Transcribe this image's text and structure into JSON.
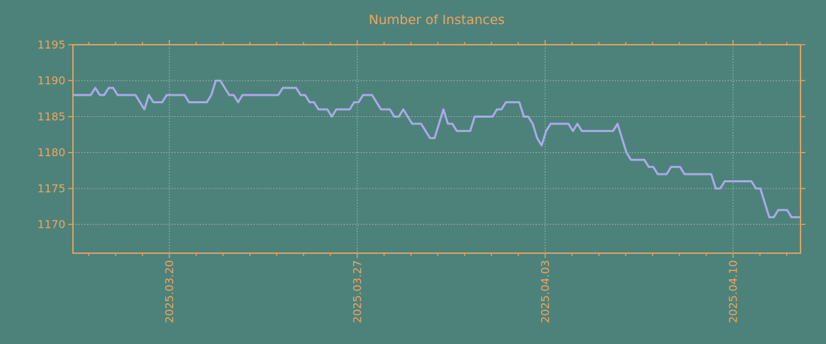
{
  "figure": {
    "colors": {
      "background": "#4d827b",
      "accent": "#f0a55c",
      "line": "#aaaae8",
      "grid": "#bfc5c1"
    }
  },
  "chart_data": {
    "type": "line",
    "title": "Number of Instances",
    "xlabel": "",
    "ylabel": "",
    "legend": "none",
    "grid": "dotted-both-axes",
    "ylim": [
      1166,
      1195
    ],
    "y_ticks": [
      1170,
      1175,
      1180,
      1185,
      1190,
      1195
    ],
    "y_gridlines": [
      1170,
      1175,
      1180,
      1185,
      1190
    ],
    "x_tick_labels": [
      "2025.03.20",
      "2025.03.27",
      "2025.04.03",
      "2025.04.10"
    ],
    "x_tick_positions_idx": [
      21.59,
      63.69,
      105.79,
      147.89
    ],
    "x_minor_step_idx": 6.014,
    "x_minor_tick_range": [
      -3,
      23
    ],
    "x_tick_label_rotation_deg": -90,
    "series": [
      {
        "name": "instances",
        "values": [
          1188,
          1188,
          1188,
          1188,
          1188,
          1189,
          1188,
          1188,
          1189,
          1189,
          1188,
          1188,
          1188,
          1188,
          1188,
          1187,
          1186,
          1188,
          1187,
          1187,
          1187,
          1188,
          1188,
          1188,
          1188,
          1188,
          1187,
          1187,
          1187,
          1187,
          1187,
          1188,
          1190,
          1190,
          1189,
          1188,
          1188,
          1187,
          1188,
          1188,
          1188,
          1188,
          1188,
          1188,
          1188,
          1188,
          1188,
          1189,
          1189,
          1189,
          1189,
          1188,
          1188,
          1187,
          1187,
          1186,
          1186,
          1186,
          1185,
          1186,
          1186,
          1186,
          1186,
          1187,
          1187,
          1188,
          1188,
          1188,
          1187,
          1186,
          1186,
          1186,
          1185,
          1185,
          1186,
          1185,
          1184,
          1184,
          1184,
          1183,
          1182,
          1182,
          1184,
          1186,
          1184,
          1184,
          1183,
          1183,
          1183,
          1183,
          1185,
          1185,
          1185,
          1185,
          1185,
          1186,
          1186,
          1187,
          1187,
          1187,
          1187,
          1185,
          1185,
          1184,
          1182,
          1181,
          1183,
          1184,
          1184,
          1184,
          1184,
          1184,
          1183,
          1184,
          1183,
          1183,
          1183,
          1183,
          1183,
          1183,
          1183,
          1183,
          1184,
          1182,
          1180,
          1179,
          1179,
          1179,
          1179,
          1178,
          1178,
          1177,
          1177,
          1177,
          1178,
          1178,
          1178,
          1177,
          1177,
          1177,
          1177,
          1177,
          1177,
          1177,
          1175,
          1175,
          1176,
          1176,
          1176,
          1176,
          1176,
          1176,
          1176,
          1175,
          1175,
          1173,
          1171,
          1171,
          1172,
          1172,
          1172,
          1171,
          1171,
          1171
        ]
      }
    ]
  }
}
